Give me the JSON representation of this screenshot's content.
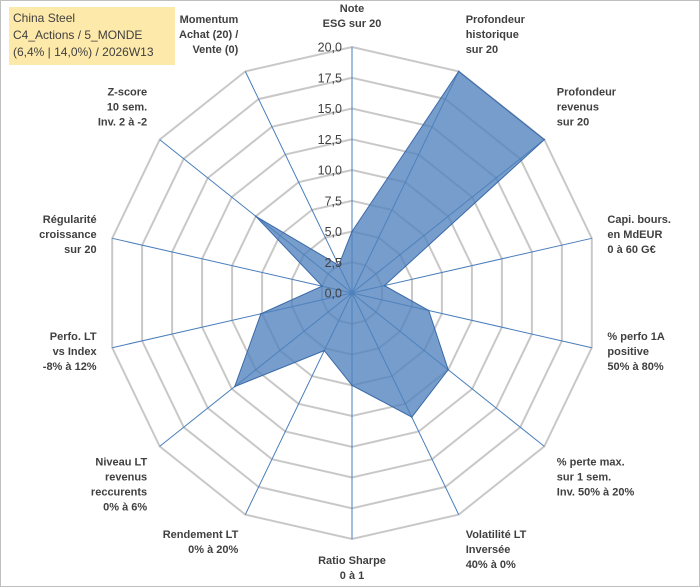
{
  "title_box": {
    "line1": "China Steel",
    "line2": "C4_Actions / 5_MONDE",
    "line3": "(6,4% | 14,0%) / 2026W13"
  },
  "colors": {
    "fill": "#4f81bd",
    "stroke": "#3a6aa8",
    "grid": "#c8c8c8",
    "spokes": "#4a7ebb",
    "title_bg": "#fde9a9"
  },
  "chart_data": {
    "type": "radar",
    "rmin": 0,
    "rmax": 20,
    "grid": true,
    "tick_labels": [
      "0,0",
      "2,5",
      "5,0",
      "7,5",
      "10,0",
      "12,5",
      "15,0",
      "17,5",
      "20,0"
    ],
    "axes": [
      {
        "label": [
          "Note",
          "ESG sur 20"
        ],
        "value": 5.0
      },
      {
        "label": [
          "Profondeur",
          "historique",
          "sur 20"
        ],
        "value": 20.0
      },
      {
        "label": [
          "Profondeur",
          "revenus",
          "sur 20"
        ],
        "value": 20.0
      },
      {
        "label": [
          "Capi. bours.",
          "en MdEUR",
          "0 à 60 G€"
        ],
        "value": 2.7
      },
      {
        "label": [
          "% perfo 1A",
          "positive",
          "50% à 80%"
        ],
        "value": 6.4
      },
      {
        "label": [
          "% perte max.",
          "sur 1 sem.",
          "Inv. 50% à 20%"
        ],
        "value": 10.0
      },
      {
        "label": [
          "Volatilité LT",
          "Inversée",
          "40% à 0%"
        ],
        "value": 11.2
      },
      {
        "label": [
          "Ratio Sharpe",
          "0 à 1"
        ],
        "value": 7.5
      },
      {
        "label": [
          "Rendement LT",
          "0% à 20%"
        ],
        "value": 5.2
      },
      {
        "label": [
          "Niveau LT",
          "revenus",
          "reccurents",
          "0% à 6%"
        ],
        "value": 12.2
      },
      {
        "label": [
          "Perfo. LT",
          "vs Index",
          "-8% à 12%"
        ],
        "value": 7.6
      },
      {
        "label": [
          "Régularité",
          "croissance",
          "sur 20"
        ],
        "value": 2.5
      },
      {
        "label": [
          "Z-score",
          "10 sem.",
          "Inv. 2 à -2"
        ],
        "value": 10.0
      },
      {
        "label": [
          "Momentum",
          "Achat (20) /",
          "Vente (0)"
        ],
        "value": 2.5
      }
    ]
  }
}
